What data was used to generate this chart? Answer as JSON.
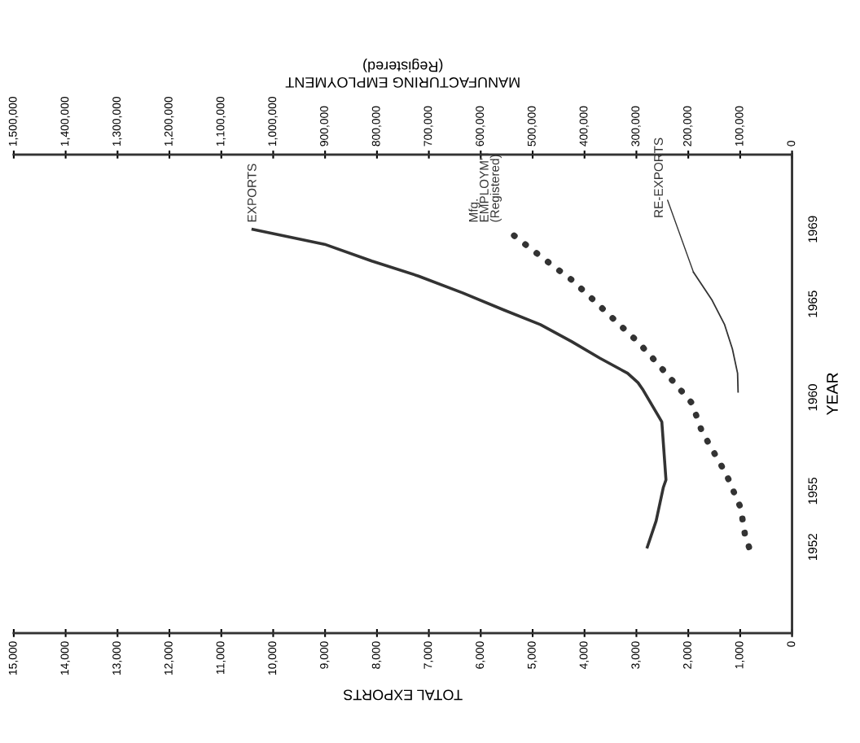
{
  "chart_data": {
    "type": "line",
    "orientation": "horizontal",
    "xlabel": "TOTAL EXPORTS",
    "x2label": "MANUFACTURING EMPLOYMENT\n(Registered)",
    "ylabel": "YEAR",
    "xlim": [
      15000,
      0
    ],
    "xticks": [
      {
        "value": 15000,
        "label": "15,000"
      },
      {
        "value": 14000,
        "label": "14,000"
      },
      {
        "value": 13000,
        "label": "13,000"
      },
      {
        "value": 12000,
        "label": "12,000"
      },
      {
        "value": 11000,
        "label": "11,000"
      },
      {
        "value": 10000,
        "label": "10,000"
      },
      {
        "value": 9000,
        "label": "9,000"
      },
      {
        "value": 8000,
        "label": "8,000"
      },
      {
        "value": 7000,
        "label": "7,000"
      },
      {
        "value": 6000,
        "label": "6,000"
      },
      {
        "value": 5000,
        "label": "5,000"
      },
      {
        "value": 4000,
        "label": "4,000"
      },
      {
        "value": 3000,
        "label": "3,000"
      },
      {
        "value": 2000,
        "label": "2,000"
      },
      {
        "value": 1000,
        "label": "1,000"
      },
      0
    ],
    "x2lim": [
      1500000,
      0
    ],
    "x2ticks": [
      {
        "value": 1500000,
        "label": "1,500,000"
      },
      {
        "value": 1400000,
        "label": "1,400,000"
      },
      {
        "value": 1300000,
        "label": "1,300,000"
      },
      {
        "value": 1200000,
        "label": "1,200,000"
      },
      {
        "value": 1100000,
        "label": "1,100,000"
      },
      {
        "value": 1000000,
        "label": "1,000,000"
      },
      {
        "value": 900000,
        "label": "900,000"
      },
      {
        "value": 800000,
        "label": "800,000"
      },
      {
        "value": 700000,
        "label": "700,000"
      },
      {
        "value": 600000,
        "label": "600,000"
      },
      {
        "value": 500000,
        "label": "500,000"
      },
      {
        "value": 400000,
        "label": "400,000"
      },
      {
        "value": 300000,
        "label": "300,000"
      },
      {
        "value": 200000,
        "label": "200,000"
      },
      {
        "value": 100000,
        "label": "100,000"
      },
      0
    ],
    "ylim": [
      1947.4,
      1973
    ],
    "yticks": [
      1952,
      1955,
      1960,
      1965,
      1969
    ],
    "grid": false,
    "series": [
      {
        "name": "EXPORTS",
        "color": "#333333",
        "line_style": "solid",
        "x": [
          1952.0,
          1953.4,
          1955.2,
          1955.6,
          1958.7,
          1960.4,
          1960.8,
          1961.3,
          1962.1,
          1963.0,
          1963.9,
          1964.7,
          1965.6,
          1966.5,
          1967.3,
          1968.2,
          1969.0
        ],
        "values": [
          2790,
          2620,
          2480,
          2430,
          2510,
          2870,
          2970,
          3170,
          3700,
          4250,
          4850,
          5570,
          6350,
          7200,
          8100,
          9010,
          10390
        ]
      },
      {
        "name": "Mfg.\nEMPLOYM'T\n(Registered)",
        "color": "#333333",
        "line_style": "dotted",
        "axis": "x2",
        "x": [
          1952.0,
          1952.7,
          1954.1,
          1954.8,
          1955.6,
          1956.3,
          1958.2,
          1959.7,
          1960.7,
          1961.9,
          1963.0,
          1964.2,
          1965.3,
          1966.3,
          1967.2,
          1968.1,
          1969.0
        ],
        "values": [
          83000,
          91000,
          99000,
          110000,
          122000,
          135000,
          174000,
          193000,
          224000,
          262000,
          298000,
          344000,
          386000,
          425000,
          468000,
          510000,
          551000
        ]
      },
      {
        "name": "RE-EXPORTS",
        "color": "#333333",
        "line_style": "solid",
        "x": [
          1960.3,
          1961.3,
          1962.6,
          1963.9,
          1965.2,
          1966.7
        ],
        "values": [
          1040,
          1050,
          1150,
          1300,
          1540,
          1900
        ]
      }
    ]
  }
}
